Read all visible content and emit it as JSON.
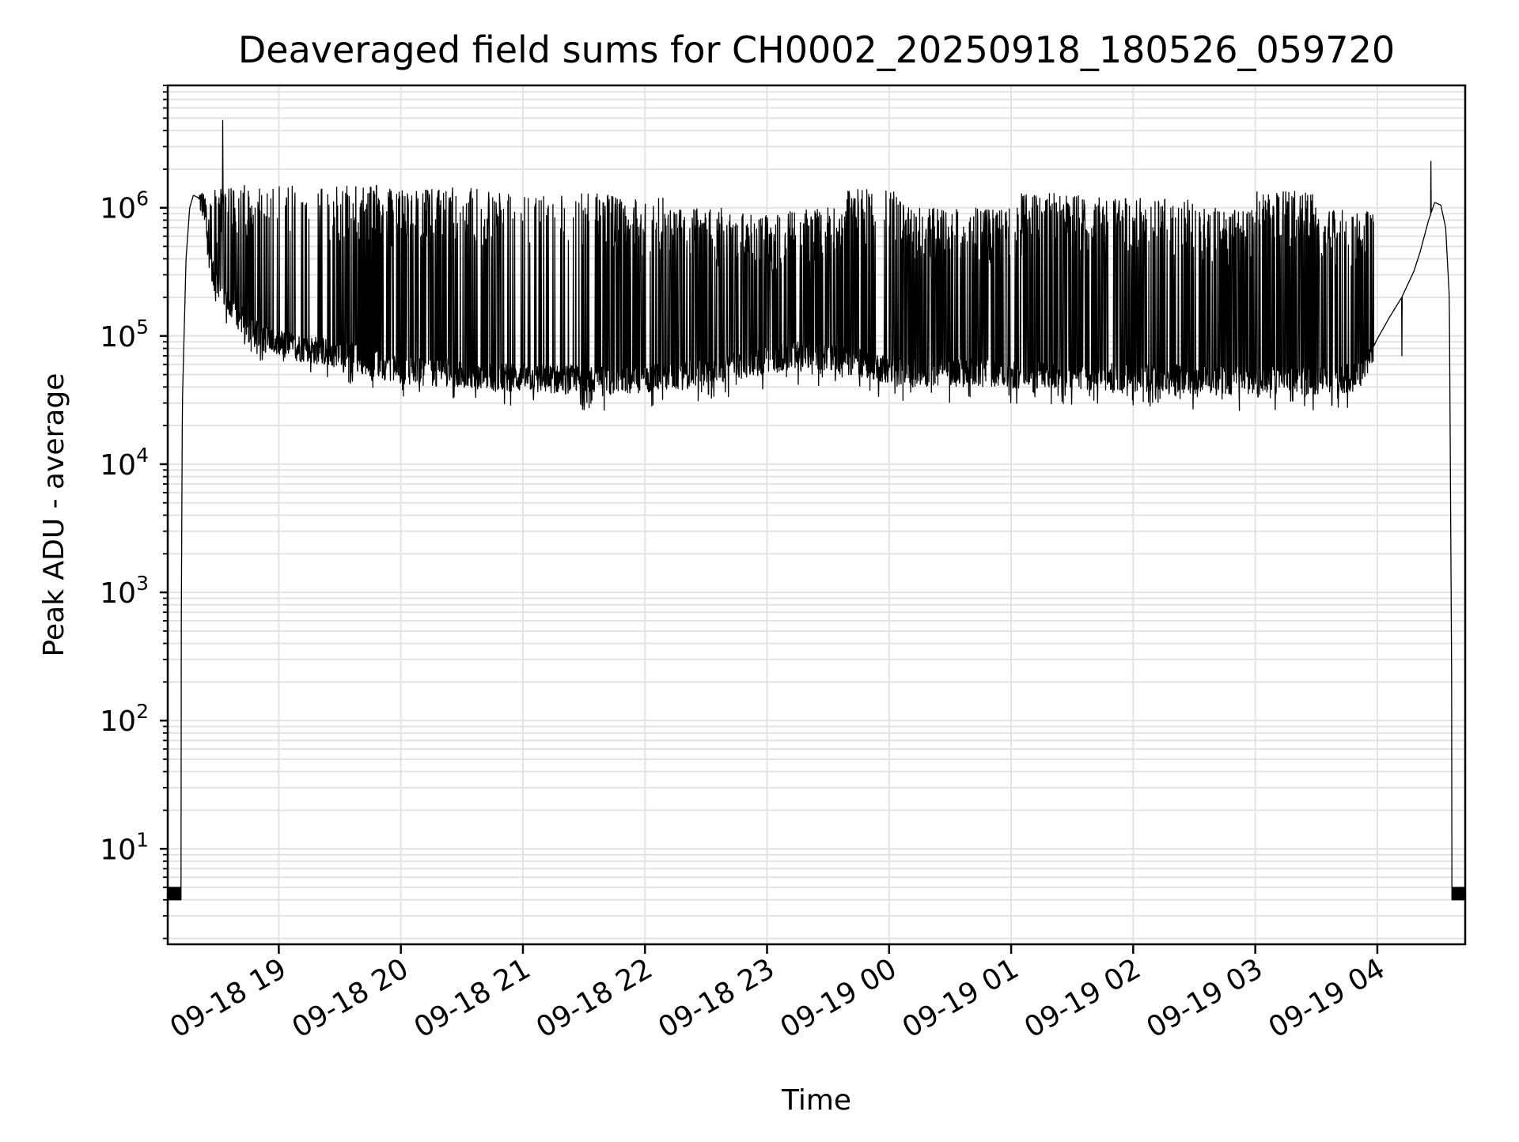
{
  "chart_data": {
    "type": "line",
    "title": "Deaveraged field sums for CH0002_20250918_180526_059720",
    "xlabel": "Time",
    "ylabel": "Peak ADU - average",
    "yscale": "log",
    "ylim": [
      1.8,
      9000000
    ],
    "xlim_hours": [
      18.09,
      28.72
    ],
    "grid": true,
    "x_ticks": [
      {
        "value": 19,
        "label": "09-18 19"
      },
      {
        "value": 20,
        "label": "09-18 20"
      },
      {
        "value": 21,
        "label": "09-18 21"
      },
      {
        "value": 22,
        "label": "09-18 22"
      },
      {
        "value": 23,
        "label": "09-18 23"
      },
      {
        "value": 24,
        "label": "09-19 00"
      },
      {
        "value": 25,
        "label": "09-19 01"
      },
      {
        "value": 26,
        "label": "09-19 02"
      },
      {
        "value": 27,
        "label": "09-19 03"
      },
      {
        "value": 28,
        "label": "09-19 04"
      }
    ],
    "y_ticks": [
      {
        "value": 10,
        "base": "10",
        "exp": "1"
      },
      {
        "value": 100,
        "base": "10",
        "exp": "2"
      },
      {
        "value": 1000,
        "base": "10",
        "exp": "3"
      },
      {
        "value": 10000,
        "base": "10",
        "exp": "4"
      },
      {
        "value": 100000,
        "base": "10",
        "exp": "5"
      },
      {
        "value": 1000000,
        "base": "10",
        "exp": "6"
      }
    ],
    "series": [
      {
        "name": "Peak ADU - average",
        "color": "#000000",
        "x_hours": [
          18.09,
          18.19,
          18.21,
          18.24,
          18.27,
          18.3,
          18.34,
          18.38,
          18.4,
          18.43,
          18.46,
          18.49,
          18.55,
          18.6,
          18.65,
          18.7,
          18.75,
          18.85,
          18.95,
          19.05,
          19.2,
          19.4,
          19.6,
          19.8,
          20.0,
          20.2,
          20.4,
          20.6,
          20.8,
          21.0,
          21.2,
          21.4,
          21.6,
          21.8,
          22.0,
          22.2,
          22.4,
          22.6,
          22.8,
          23.0,
          23.2,
          23.4,
          23.6,
          23.8,
          24.0,
          24.2,
          24.4,
          24.6,
          24.8,
          25.0,
          25.2,
          25.4,
          25.6,
          25.8,
          26.0,
          26.2,
          26.4,
          26.6,
          26.8,
          27.0,
          27.2,
          27.4,
          27.6,
          27.8,
          27.9,
          28.0,
          28.1,
          28.2,
          28.3,
          28.35,
          28.42,
          28.47,
          28.52,
          28.56,
          28.59,
          28.62,
          28.72
        ],
        "baseline_y": [
          4,
          4,
          30000,
          400000,
          1000000,
          1250000,
          1200000,
          1050000,
          900000,
          500000,
          300000,
          250000,
          200000,
          160000,
          150000,
          130000,
          110000,
          100000,
          90000,
          85000,
          80000,
          75000,
          70000,
          60000,
          55000,
          52000,
          52000,
          50000,
          48000,
          47000,
          46000,
          46000,
          45000,
          45000,
          46000,
          48000,
          52000,
          55000,
          60000,
          65000,
          70000,
          70000,
          65000,
          60000,
          55000,
          52000,
          52000,
          52000,
          52000,
          50000,
          50000,
          50000,
          48000,
          48000,
          48000,
          47000,
          46000,
          45000,
          45000,
          45000,
          45000,
          45000,
          45000,
          47000,
          60000,
          95000,
          140000,
          200000,
          320000,
          450000,
          800000,
          1100000,
          1050000,
          700000,
          200000,
          4,
          4
        ],
        "spike_max": [
          1500000,
          1500000,
          1500000,
          1400000,
          1450000,
          1300000,
          1300000,
          1200000,
          1000000,
          900000,
          1000000,
          1400000,
          1000000,
          1000000,
          1300000,
          1200000,
          1200000,
          1000000,
          1350000,
          1000000
        ],
        "spike_bands_hours": [
          18.4,
          18.9,
          19.35,
          20.85,
          21.45,
          22.0,
          22.05,
          23.9,
          24.0,
          26.0,
          26.0,
          27.0,
          27.0,
          27.95
        ],
        "notable_peaks": [
          {
            "x_hours": 18.54,
            "y": 4800000
          },
          {
            "x_hours": 28.44,
            "y": 2300000
          },
          {
            "x_hours": 28.2,
            "y": 70000
          }
        ]
      }
    ]
  }
}
